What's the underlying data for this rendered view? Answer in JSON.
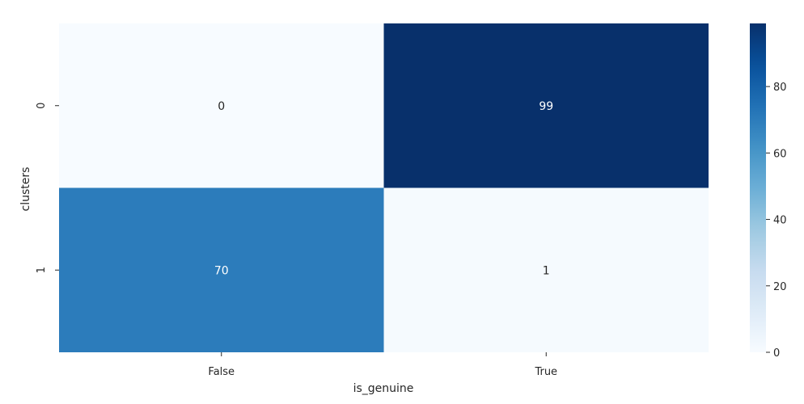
{
  "chart_data": {
    "type": "heatmap",
    "title": "",
    "xlabel": "is_genuine",
    "ylabel": "clusters",
    "x_categories": [
      "False",
      "True"
    ],
    "y_categories": [
      "0",
      "1"
    ],
    "values": [
      [
        0,
        99
      ],
      [
        70,
        1
      ]
    ],
    "annotations": [
      [
        "0",
        "99"
      ],
      [
        "70",
        "1"
      ]
    ],
    "colormap": "Blues",
    "colorbar": {
      "range": [
        0,
        99
      ],
      "ticks": [
        0,
        20,
        40,
        60,
        80
      ],
      "tick_labels": [
        "0",
        "20",
        "40",
        "60",
        "80"
      ],
      "placement": "right"
    },
    "grid": false
  }
}
